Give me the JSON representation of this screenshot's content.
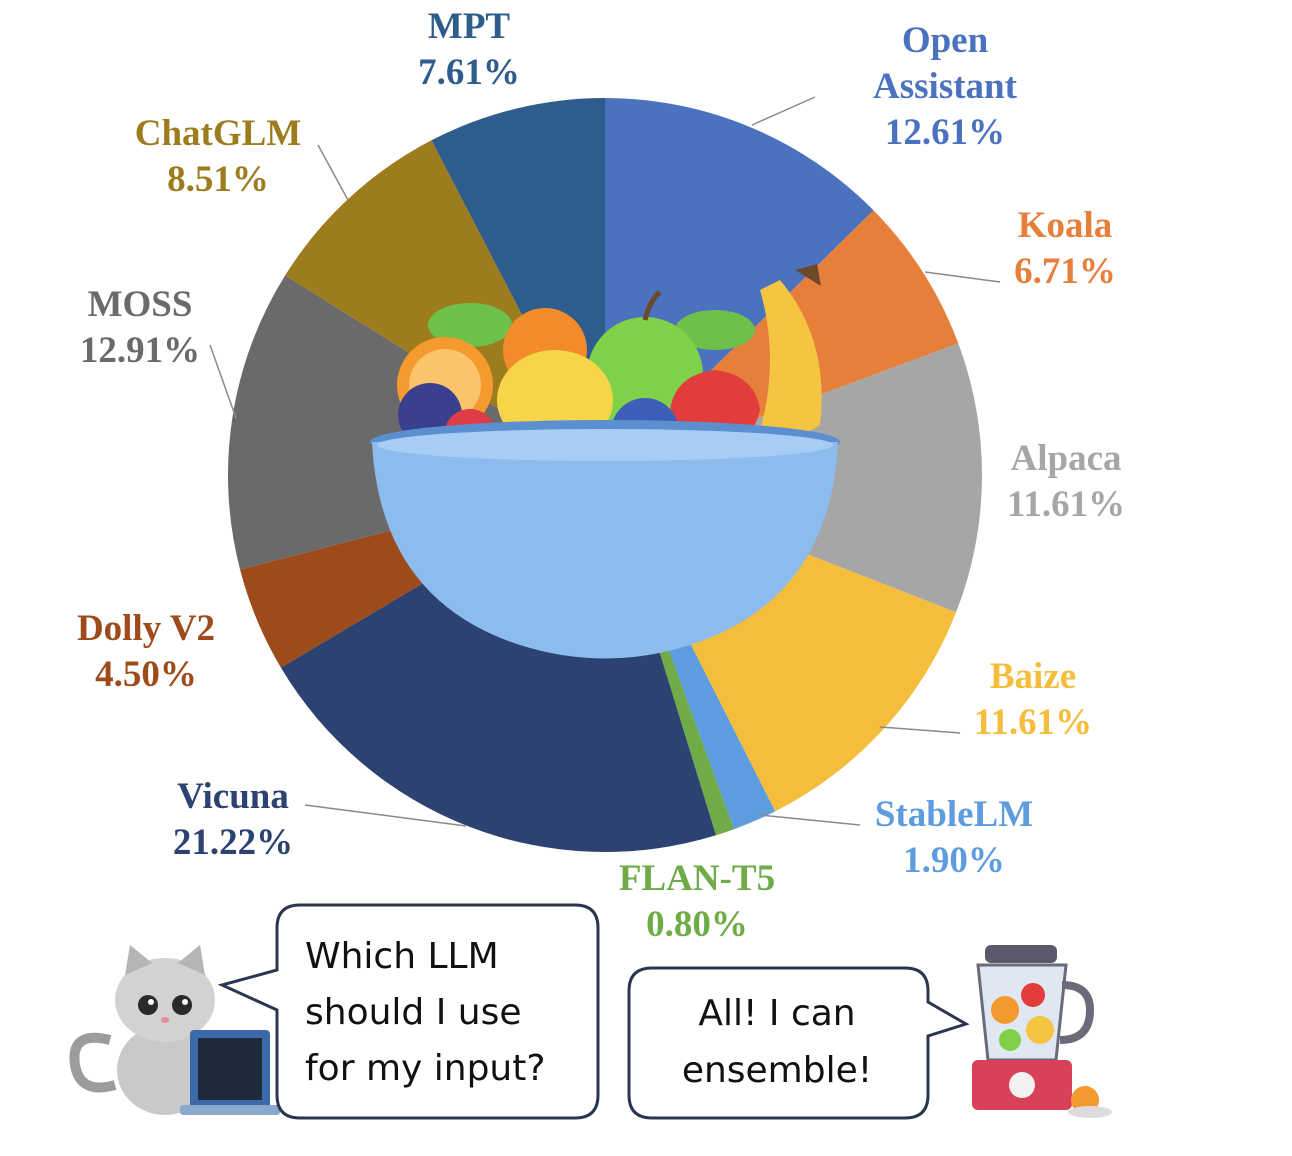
{
  "chart_data": {
    "type": "pie",
    "title": "",
    "slices": [
      {
        "name": "Open Assistant",
        "value": 12.61,
        "label_lines": [
          "Open",
          "Assistant",
          "12.61%"
        ],
        "color": "#4a72bf",
        "text_color": "#4a72bf"
      },
      {
        "name": "Koala",
        "value": 6.71,
        "label_lines": [
          "Koala",
          "6.71%"
        ],
        "color": "#e67f3a",
        "text_color": "#e67f3a"
      },
      {
        "name": "Alpaca",
        "value": 11.61,
        "label_lines": [
          "Alpaca",
          "11.61%"
        ],
        "color": "#a6a6a6",
        "text_color": "#a6a6a6"
      },
      {
        "name": "Baize",
        "value": 11.61,
        "label_lines": [
          "Baize",
          "11.61%"
        ],
        "color": "#f4be3c",
        "text_color": "#f4be3c"
      },
      {
        "name": "StableLM",
        "value": 1.9,
        "label_lines": [
          "StableLM",
          "1.90%"
        ],
        "color": "#5d9cde",
        "text_color": "#5d9cde"
      },
      {
        "name": "FLAN-T5",
        "value": 0.8,
        "label_lines": [
          "FLAN-T5",
          "0.80%"
        ],
        "color": "#6fab47",
        "text_color": "#6fab47"
      },
      {
        "name": "Vicuna",
        "value": 21.22,
        "label_lines": [
          "Vicuna",
          "21.22%"
        ],
        "color": "#2c4271",
        "text_color": "#2c4271"
      },
      {
        "name": "Dolly V2",
        "value": 4.5,
        "label_lines": [
          "Dolly V2",
          "4.50%"
        ],
        "color": "#9e4b1b",
        "text_color": "#9e4b1b"
      },
      {
        "name": "MOSS",
        "value": 12.91,
        "label_lines": [
          "MOSS",
          "12.91%"
        ],
        "color": "#6a6a6a",
        "text_color": "#6a6a6a"
      },
      {
        "name": "ChatGLM",
        "value": 8.51,
        "label_lines": [
          "ChatGLM",
          "8.51%"
        ],
        "color": "#9d7c1d",
        "text_color": "#9d7c1d"
      },
      {
        "name": "MPT",
        "value": 7.61,
        "label_lines": [
          "MPT",
          "7.61%"
        ],
        "color": "#2e5c8d",
        "text_color": "#2e5c8d"
      }
    ]
  },
  "cat_bubble": {
    "lines": [
      "Which LLM",
      "should I use",
      "for my input?"
    ]
  },
  "blender_bubble": {
    "lines": [
      "All! I can",
      "ensemble!"
    ]
  },
  "illustration_icons": [
    "fruit-bowl-icon",
    "cat-icon",
    "laptop-icon",
    "blender-icon"
  ]
}
